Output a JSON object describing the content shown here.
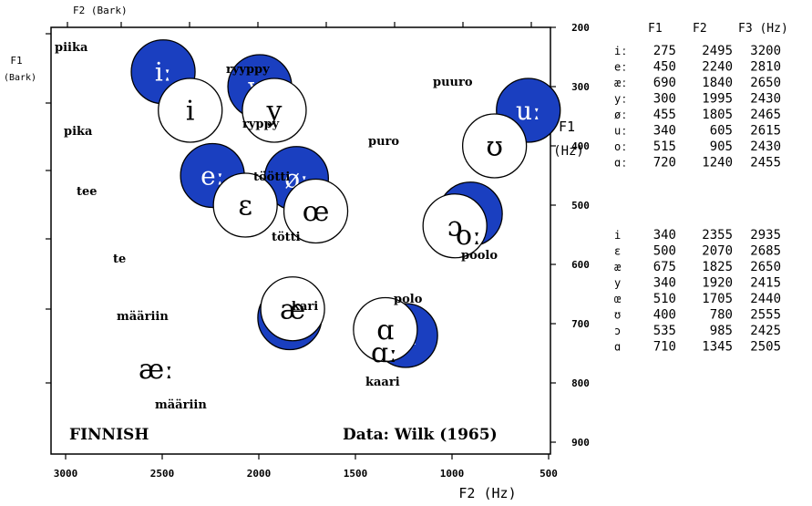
{
  "chart_data": {
    "type": "scatter",
    "title": "FINNISH",
    "source": "Data: Wilk (1965)",
    "xlabel": "F2 (Hz)",
    "ylabel_f1": "F1",
    "ylabel_hz": "(Hz)",
    "top_axis_label": "F2 (Bark)",
    "left_axis_label_f1": "F1",
    "left_axis_label_bark": "(Bark)",
    "x_reversed": true,
    "y_reversed": true,
    "xlim": [
      3100,
      500
    ],
    "ylim": [
      200,
      950
    ],
    "x_ticks": [
      3000,
      2500,
      2000,
      1500,
      1000,
      500
    ],
    "y_ticks": [
      200,
      300,
      400,
      500,
      600,
      700,
      800,
      900
    ],
    "series": [
      {
        "name": "long",
        "color": "#1a3fc0",
        "points": [
          {
            "symbol": "iː",
            "word": "piika",
            "F1": 275,
            "F2": 2495,
            "F3": 3200
          },
          {
            "symbol": "eː",
            "word": "tee",
            "F1": 450,
            "F2": 2240,
            "F3": 2810
          },
          {
            "symbol": "æː",
            "word": "määriin",
            "F1": 690,
            "F2": 1840,
            "F3": 2650
          },
          {
            "symbol": "yː",
            "word": "ryyppy",
            "F1": 300,
            "F2": 1995,
            "F3": 2430
          },
          {
            "symbol": "øː",
            "word": "töötti",
            "F1": 455,
            "F2": 1805,
            "F3": 2465
          },
          {
            "symbol": "uː",
            "word": "puuro",
            "F1": 340,
            "F2": 605,
            "F3": 2615
          },
          {
            "symbol": "oː",
            "word": "poolo",
            "F1": 515,
            "F2": 905,
            "F3": 2430
          },
          {
            "symbol": "ɑː",
            "word": "kaari",
            "F1": 720,
            "F2": 1240,
            "F3": 2455
          }
        ]
      },
      {
        "name": "short",
        "color": "#ffffff",
        "points": [
          {
            "symbol": "i",
            "word": "pika",
            "F1": 340,
            "F2": 2355,
            "F3": 2935
          },
          {
            "symbol": "ɛ",
            "word": "te",
            "F1": 500,
            "F2": 2070,
            "F3": 2685
          },
          {
            "symbol": "æ",
            "word": "määriin",
            "F1": 675,
            "F2": 1825,
            "F3": 2650
          },
          {
            "symbol": "y",
            "word": "ryppy",
            "F1": 340,
            "F2": 1920,
            "F3": 2415
          },
          {
            "symbol": "œ",
            "word": "tötti",
            "F1": 510,
            "F2": 1705,
            "F3": 2440
          },
          {
            "symbol": "ʊ",
            "word": "puro",
            "F1": 400,
            "F2": 780,
            "F3": 2555
          },
          {
            "symbol": "ɔ",
            "word": "polo",
            "F1": 535,
            "F2": 985,
            "F3": 2425
          },
          {
            "symbol": "ɑ",
            "word": "kari",
            "F1": 710,
            "F2": 1345,
            "F3": 2505
          }
        ]
      }
    ],
    "table": {
      "headers": [
        "",
        "F1",
        "F2",
        "F3 (Hz)"
      ],
      "long_rows": [
        [
          "iː",
          "275",
          "2495",
          "3200"
        ],
        [
          "eː",
          "450",
          "2240",
          "2810"
        ],
        [
          "æː",
          "690",
          "1840",
          "2650"
        ],
        [
          "yː",
          "300",
          "1995",
          "2430"
        ],
        [
          "øː",
          "455",
          "1805",
          "2465"
        ],
        [
          "uː",
          "340",
          "605",
          "2615"
        ],
        [
          "oː",
          "515",
          "905",
          "2430"
        ],
        [
          "ɑː",
          "720",
          "1240",
          "2455"
        ]
      ],
      "short_rows": [
        [
          "i",
          "340",
          "2355",
          "2935"
        ],
        [
          "ɛ",
          "500",
          "2070",
          "2685"
        ],
        [
          "æ",
          "675",
          "1825",
          "2650"
        ],
        [
          "y",
          "340",
          "1920",
          "2415"
        ],
        [
          "œ",
          "510",
          "1705",
          "2440"
        ],
        [
          "ʊ",
          "400",
          "780",
          "2555"
        ],
        [
          "ɔ",
          "535",
          "985",
          "2425"
        ],
        [
          "ɑ",
          "710",
          "1345",
          "2505"
        ]
      ]
    },
    "colors": {
      "long_fill": "#1a3fc0",
      "short_fill": "#ffffff",
      "axis": "#000000"
    }
  }
}
